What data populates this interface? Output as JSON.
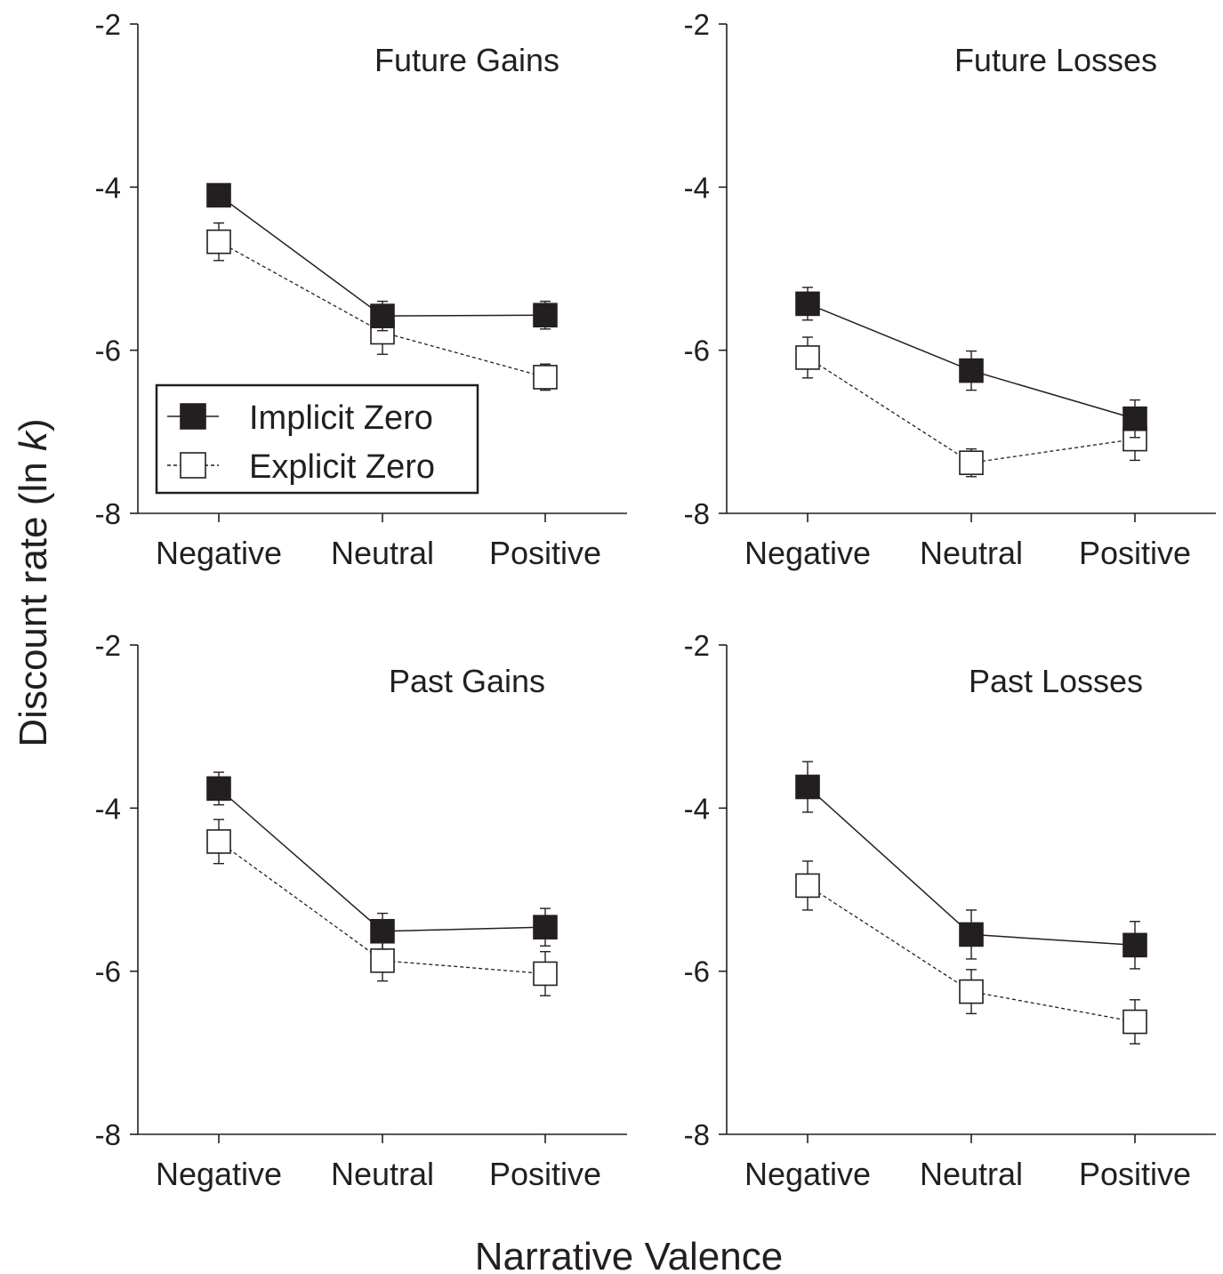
{
  "figure": {
    "x_axis_title": "Narrative Valence",
    "y_axis_title_main": "Discount rate (ln ",
    "y_axis_title_italic": "k",
    "y_axis_title_close": ")"
  },
  "legend": [
    {
      "label": "Implicit Zero",
      "fill": "#231f20",
      "line": "solid"
    },
    {
      "label": "Explicit Zero",
      "fill": "#ffffff",
      "line": "dashed"
    }
  ],
  "colors": {
    "ink": "#231f20",
    "background": "#ffffff"
  },
  "chart_data": [
    {
      "type": "line",
      "title": "Future Gains",
      "categories": [
        "Negative",
        "Neutral",
        "Positive"
      ],
      "ylim": [
        -8,
        -2
      ],
      "yticks": [
        "-2",
        "-4",
        "-6",
        "-8"
      ],
      "series": [
        {
          "name": "Implicit Zero",
          "values": [
            -4.1,
            -5.58,
            -5.57
          ],
          "errors": [
            0.0,
            0.18,
            0.17
          ]
        },
        {
          "name": "Explicit Zero",
          "values": [
            -4.67,
            -5.78,
            -6.33
          ],
          "errors": [
            0.23,
            0.27,
            0.16
          ]
        }
      ]
    },
    {
      "type": "line",
      "title": "Future Losses",
      "categories": [
        "Negative",
        "Neutral",
        "Positive"
      ],
      "ylim": [
        -8,
        -2
      ],
      "yticks": [
        "-2",
        "-4",
        "-6",
        "-8"
      ],
      "series": [
        {
          "name": "Implicit Zero",
          "values": [
            -5.43,
            -6.25,
            -6.84
          ],
          "errors": [
            0.2,
            0.24,
            0.23
          ]
        },
        {
          "name": "Explicit Zero",
          "values": [
            -6.09,
            -7.38,
            -7.09
          ],
          "errors": [
            0.25,
            0.17,
            0.26
          ]
        }
      ]
    },
    {
      "type": "line",
      "title": "Past Gains",
      "categories": [
        "Negative",
        "Neutral",
        "Positive"
      ],
      "ylim": [
        -8,
        -2
      ],
      "yticks": [
        "-2",
        "-4",
        "-6",
        "-8"
      ],
      "series": [
        {
          "name": "Implicit Zero",
          "values": [
            -3.76,
            -5.51,
            -5.46
          ],
          "errors": [
            0.2,
            0.22,
            0.23
          ]
        },
        {
          "name": "Explicit Zero",
          "values": [
            -4.41,
            -5.87,
            -6.03
          ],
          "errors": [
            0.27,
            0.25,
            0.27
          ]
        }
      ]
    },
    {
      "type": "line",
      "title": "Past Losses",
      "categories": [
        "Negative",
        "Neutral",
        "Positive"
      ],
      "ylim": [
        -8,
        -2
      ],
      "yticks": [
        "-2",
        "-4",
        "-6",
        "-8"
      ],
      "series": [
        {
          "name": "Implicit Zero",
          "values": [
            -3.74,
            -5.55,
            -5.68
          ],
          "errors": [
            0.31,
            0.3,
            0.29
          ]
        },
        {
          "name": "Explicit Zero",
          "values": [
            -4.95,
            -6.25,
            -6.62
          ],
          "errors": [
            0.3,
            0.27,
            0.27
          ]
        }
      ]
    }
  ]
}
